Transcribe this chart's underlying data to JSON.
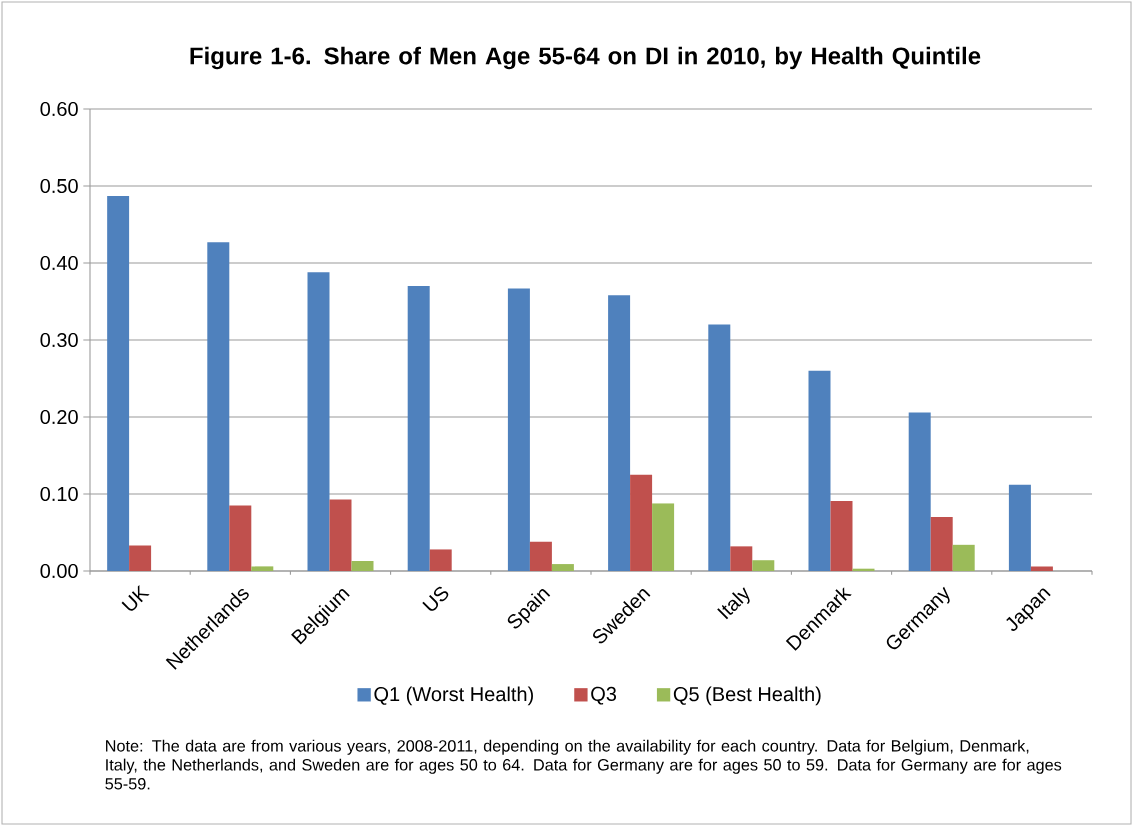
{
  "chart_data": {
    "type": "bar",
    "title": "Figure 1-6.  Share of Men Age 55-64 on DI in 2010, by Health Quintile",
    "categories": [
      "UK",
      "Netherlands",
      "Belgium",
      "US",
      "Spain",
      "Sweden",
      "Italy",
      "Denmark",
      "Germany",
      "Japan"
    ],
    "series": [
      {
        "name": "Q1 (Worst Health)",
        "color": "#4f81bd",
        "values": [
          0.487,
          0.427,
          0.388,
          0.37,
          0.367,
          0.358,
          0.32,
          0.26,
          0.206,
          0.112
        ]
      },
      {
        "name": "Q3",
        "color": "#c0504d",
        "values": [
          0.033,
          0.085,
          0.093,
          0.028,
          0.038,
          0.125,
          0.032,
          0.091,
          0.07,
          0.006
        ]
      },
      {
        "name": "Q5 (Best Health)",
        "color": "#9bbb59",
        "values": [
          0,
          0.006,
          0.013,
          0,
          0.009,
          0.088,
          0.014,
          0.003,
          0.034,
          0
        ]
      }
    ],
    "ylim": [
      0,
      0.6
    ],
    "yticks": [
      {
        "value": 0,
        "label": "0.00"
      },
      {
        "value": 0.1,
        "label": "0.10"
      },
      {
        "value": 0.2,
        "label": "0.20"
      },
      {
        "value": 0.3,
        "label": "0.30"
      },
      {
        "value": 0.4,
        "label": "0.40"
      },
      {
        "value": 0.5,
        "label": "0.50"
      },
      {
        "value": 0.6,
        "label": "0.60"
      }
    ],
    "grid": "y",
    "legend": "bottom",
    "annotations": [
      "Note: The data are from various years, 2008-2011, depending on the availability for each country.   Data for Belgium, Denmark, Italy,  the Netherlands,  and Sweden are for ages 50 to 64.  Data for Germany  are for ages 50 to 59.  Data for Germany  are for ages 55-59."
    ]
  }
}
